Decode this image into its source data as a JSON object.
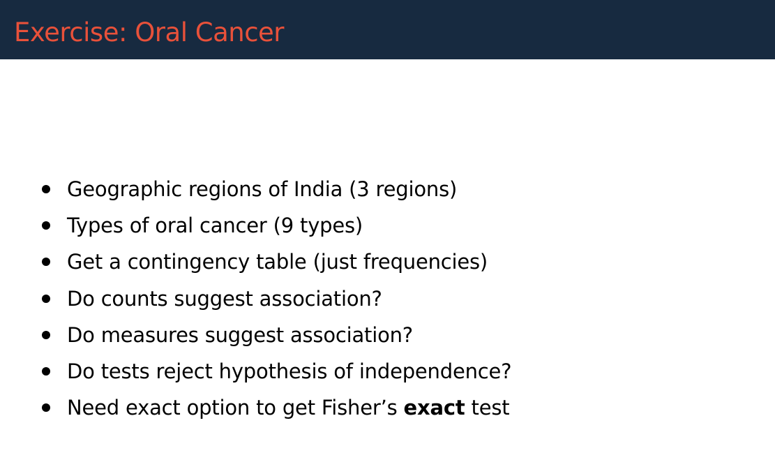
{
  "slide": {
    "title": "Exercise: Oral Cancer",
    "bullets": [
      {
        "text": "Geographic regions of India (3 regions)"
      },
      {
        "text": "Types of oral cancer (9 types)"
      },
      {
        "text": "Get a contingency table (just frequencies)"
      },
      {
        "text": "Do counts suggest association?"
      },
      {
        "text": "Do measures suggest association?"
      },
      {
        "text": "Do tests reject hypothesis of independence?"
      },
      {
        "text_before": "Need exact option to get Fisher’s ",
        "text_bold": "exact",
        "text_after": " test"
      }
    ]
  },
  "colors": {
    "title_bar": "#172a40",
    "title_text": "#e8513a",
    "body_text": "#000000",
    "background": "#ffffff"
  }
}
